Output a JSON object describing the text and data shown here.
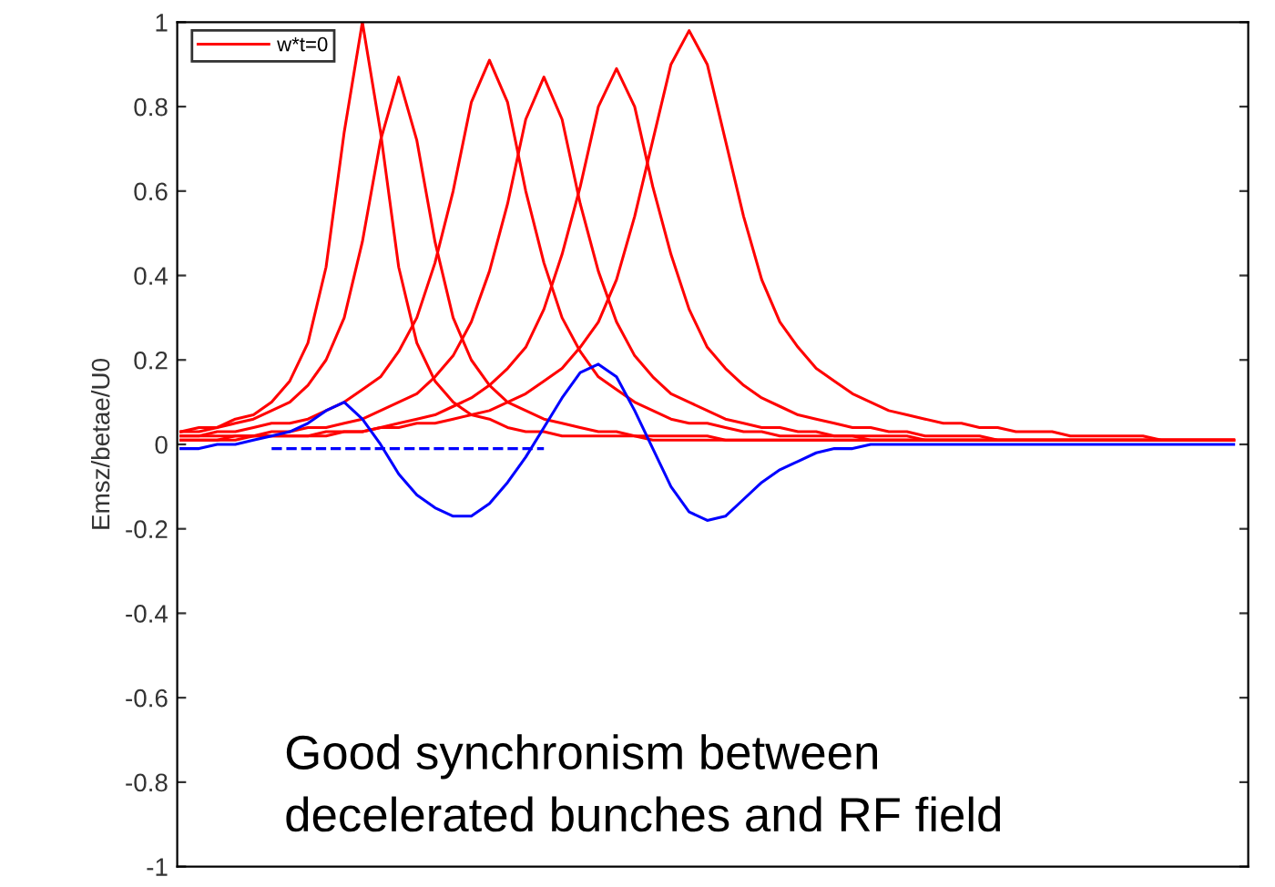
{
  "chart_data": {
    "type": "line",
    "ylabel": "Emsz/betae/U0",
    "categories": [
      null,
      null,
      null,
      null,
      null,
      null,
      null,
      null,
      null,
      null,
      null,
      null,
      null,
      null,
      null,
      null,
      null,
      null,
      null,
      null,
      null,
      null,
      null,
      null,
      null,
      null,
      null,
      null,
      null,
      null,
      null,
      null,
      null,
      null,
      null,
      null,
      null,
      null,
      null,
      null,
      null,
      null,
      null,
      null,
      null,
      null,
      null,
      null,
      null,
      null,
      null,
      null,
      null,
      null,
      null,
      null,
      null,
      null,
      null
    ],
    "ylim": [
      -1,
      1
    ],
    "yticks": [
      -1,
      -0.8,
      -0.6,
      -0.4,
      -0.2,
      0,
      0.2,
      0.4,
      0.6,
      0.8,
      1
    ],
    "tick_labels": "y",
    "legend": "top left",
    "grid": false,
    "series": [
      {
        "name": "w*t=0",
        "color": "#ff0000",
        "values": [
          0.03,
          0.03,
          0.04,
          0.06,
          0.07,
          0.1,
          0.15,
          0.24,
          0.42,
          0.74,
          1,
          0.74,
          0.42,
          0.24,
          0.15,
          0.1,
          0.07,
          0.06,
          0.04,
          0.03,
          0.03,
          0.02,
          0.02,
          0.02,
          0.02,
          0.02,
          0.01,
          0.01,
          0.01,
          0.01,
          0.01,
          0.01,
          0.01,
          0.01,
          0.01,
          0.01,
          0.01,
          0.01,
          0.01,
          0.01,
          0.01,
          0.01,
          0.01,
          0.01,
          0.01,
          0.01,
          0.01,
          0.01,
          0.01,
          0.01,
          0.01,
          0.01,
          0.01,
          0.01,
          0.01,
          0.01,
          0.01,
          0.01,
          0.01
        ]
      },
      {
        "color": "#ff0000",
        "values": [
          0.03,
          0.04,
          0.04,
          0.05,
          0.06,
          0.08,
          0.1,
          0.14,
          0.2,
          0.3,
          0.48,
          0.72,
          0.87,
          0.72,
          0.48,
          0.3,
          0.2,
          0.14,
          0.1,
          0.08,
          0.06,
          0.05,
          0.04,
          0.03,
          0.03,
          0.02,
          0.02,
          0.02,
          0.02,
          0.02,
          0.01,
          0.01,
          0.01,
          0.01,
          0.01,
          0.01,
          0.01,
          0.01,
          0.01,
          0.01,
          0.01,
          0.01,
          0.01,
          0.01,
          0.01,
          0.01,
          0.01,
          0.01,
          0.01,
          0.01,
          0.01,
          0.01,
          0.01,
          0.01,
          0.01,
          0.01,
          0.01,
          0.01,
          0.01
        ]
      },
      {
        "color": "#ff0000",
        "values": [
          0.02,
          0.02,
          0.03,
          0.03,
          0.04,
          0.05,
          0.05,
          0.06,
          0.08,
          0.1,
          0.13,
          0.16,
          0.22,
          0.3,
          0.43,
          0.6,
          0.81,
          0.91,
          0.81,
          0.6,
          0.43,
          0.3,
          0.22,
          0.16,
          0.13,
          0.1,
          0.08,
          0.06,
          0.05,
          0.05,
          0.04,
          0.03,
          0.03,
          0.02,
          0.02,
          0.02,
          0.02,
          0.02,
          0.01,
          0.01,
          0.01,
          0.01,
          0.01,
          0.01,
          0.01,
          0.01,
          0.01,
          0.01,
          0.01,
          0.01,
          0.01,
          0.01,
          0.01,
          0.01,
          0.01,
          0.01,
          0.01,
          0.01,
          0.01
        ]
      },
      {
        "color": "#ff0000",
        "values": [
          0.02,
          0.02,
          0.02,
          0.02,
          0.02,
          0.03,
          0.03,
          0.04,
          0.04,
          0.05,
          0.06,
          0.08,
          0.1,
          0.12,
          0.16,
          0.21,
          0.29,
          0.41,
          0.57,
          0.77,
          0.87,
          0.77,
          0.57,
          0.41,
          0.29,
          0.21,
          0.16,
          0.12,
          0.1,
          0.08,
          0.06,
          0.05,
          0.04,
          0.04,
          0.03,
          0.03,
          0.02,
          0.02,
          0.02,
          0.02,
          0.02,
          0.01,
          0.01,
          0.01,
          0.01,
          0.01,
          0.01,
          0.01,
          0.01,
          0.01,
          0.01,
          0.01,
          0.01,
          0.01,
          0.01,
          0.01,
          0.01,
          0.01,
          0.01
        ]
      },
      {
        "color": "#ff0000",
        "values": [
          0.01,
          0.01,
          0.01,
          0.01,
          0.02,
          0.02,
          0.02,
          0.02,
          0.02,
          0.03,
          0.03,
          0.04,
          0.05,
          0.06,
          0.07,
          0.09,
          0.11,
          0.14,
          0.18,
          0.23,
          0.32,
          0.45,
          0.61,
          0.8,
          0.89,
          0.8,
          0.61,
          0.45,
          0.32,
          0.23,
          0.18,
          0.14,
          0.11,
          0.09,
          0.07,
          0.06,
          0.05,
          0.04,
          0.04,
          0.03,
          0.03,
          0.02,
          0.02,
          0.02,
          0.02,
          0.01,
          0.01,
          0.01,
          0.01,
          0.01,
          0.01,
          0.01,
          0.01,
          0.01,
          0.01,
          0.01,
          0.01,
          0.01,
          0.01
        ]
      },
      {
        "color": "#ff0000",
        "values": [
          0.01,
          0.01,
          0.01,
          0.02,
          0.02,
          0.02,
          0.02,
          0.02,
          0.03,
          0.03,
          0.03,
          0.04,
          0.04,
          0.05,
          0.05,
          0.06,
          0.07,
          0.08,
          0.1,
          0.12,
          0.15,
          0.18,
          0.23,
          0.29,
          0.39,
          0.54,
          0.72,
          0.9,
          0.98,
          0.9,
          0.72,
          0.54,
          0.39,
          0.29,
          0.23,
          0.18,
          0.15,
          0.12,
          0.1,
          0.08,
          0.07,
          0.06,
          0.05,
          0.05,
          0.04,
          0.04,
          0.03,
          0.03,
          0.03,
          0.02,
          0.02,
          0.02,
          0.02,
          0.02,
          0.01,
          0.01,
          0.01,
          0.01,
          0.01
        ]
      },
      {
        "color": "#0000ff",
        "values": [
          -0.01,
          -0.01,
          0,
          0,
          0.01,
          0.02,
          0.03,
          0.05,
          0.08,
          0.1,
          0.06,
          0,
          -0.07,
          -0.12,
          -0.15,
          -0.17,
          -0.17,
          -0.14,
          -0.09,
          -0.03,
          0.04,
          0.11,
          0.17,
          0.19,
          0.16,
          0.08,
          -0.01,
          -0.1,
          -0.16,
          -0.18,
          -0.17,
          -0.13,
          -0.09,
          -0.06,
          -0.04,
          -0.02,
          -0.01,
          -0.01,
          0,
          0,
          0,
          0,
          0,
          0,
          0,
          0,
          0,
          0,
          0,
          0,
          0,
          0,
          0,
          0,
          0,
          0,
          0,
          0,
          0
        ]
      },
      {
        "color": "#0000ff",
        "line_style": "dashed",
        "values": [
          null,
          null,
          null,
          null,
          null,
          -0.01,
          -0.01,
          -0.01,
          -0.01,
          -0.01,
          -0.01,
          -0.01,
          -0.01,
          -0.01,
          -0.01,
          -0.01,
          -0.01,
          -0.01,
          -0.01,
          -0.01,
          -0.01,
          null,
          null,
          null,
          null,
          null,
          null,
          null,
          null,
          null,
          null,
          null,
          null,
          null,
          null,
          null,
          null,
          null,
          null,
          null,
          null,
          null,
          null,
          null,
          null,
          null,
          null,
          null,
          null,
          null,
          null,
          null,
          null,
          null,
          null,
          null,
          null,
          null,
          null
        ]
      }
    ],
    "annotations": [
      "Good synchronism between\ndecelerated bunches and RF field"
    ]
  }
}
